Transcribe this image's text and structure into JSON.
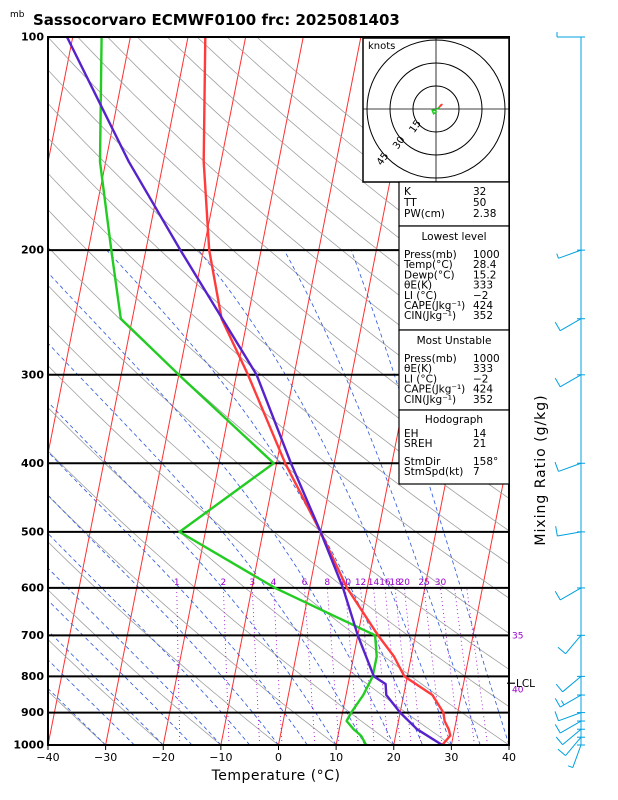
{
  "chart_data": {
    "type": "line",
    "title": "Sassocorvaro ECMWF0100 frc: 2025081403",
    "ylabel_unit": "mb",
    "xlabel": "Temperature (°C)",
    "right_label": "Mixing Ratio (g/kg)",
    "xlim": [
      -40,
      40
    ],
    "ylim": [
      1000,
      100
    ],
    "x_ticks": [
      "−40",
      "−30",
      "−20",
      "−10",
      "0",
      "10",
      "20",
      "30",
      "40"
    ],
    "p_levels": [
      {
        "value": 100,
        "label": "100"
      },
      {
        "value": 200,
        "label": "200"
      },
      {
        "value": 300,
        "label": "300"
      },
      {
        "value": 400,
        "label": "400"
      },
      {
        "value": 500,
        "label": "500"
      },
      {
        "value": 600,
        "label": "600"
      },
      {
        "value": 700,
        "label": "700"
      },
      {
        "value": 800,
        "label": "800"
      },
      {
        "value": 900,
        "label": "900"
      },
      {
        "value": 1000,
        "label": "1000"
      }
    ],
    "mixing_ratio_labels": [
      {
        "w": 1,
        "label": "1"
      },
      {
        "w": 2,
        "label": "2"
      },
      {
        "w": 3,
        "label": "3"
      },
      {
        "w": 4,
        "label": "4"
      },
      {
        "w": 6,
        "label": "6"
      },
      {
        "w": 8,
        "label": "8"
      },
      {
        "w": 10,
        "label": "10"
      },
      {
        "w": 12,
        "label": "12"
      },
      {
        "w": 14,
        "label": "14"
      },
      {
        "w": 16,
        "label": "16"
      },
      {
        "w": 18,
        "label": "18"
      },
      {
        "w": 20,
        "label": "20"
      },
      {
        "w": 25,
        "label": "25"
      },
      {
        "w": 30,
        "label": "30"
      },
      {
        "w": 35,
        "label": "35"
      },
      {
        "w": 40,
        "label": "40"
      }
    ],
    "series": [
      {
        "name": "Temperature",
        "color": "#ff3b3b",
        "points": [
          [
            1000,
            28.4
          ],
          [
            970,
            29.5
          ],
          [
            950,
            29.0
          ],
          [
            925,
            28.0
          ],
          [
            900,
            27.5
          ],
          [
            850,
            25.0
          ],
          [
            800,
            19.5
          ],
          [
            750,
            17.0
          ],
          [
            700,
            13.5
          ],
          [
            600,
            6.5
          ],
          [
            500,
            0.0
          ],
          [
            400,
            -8.5
          ],
          [
            300,
            -18.0
          ],
          [
            250,
            -24.5
          ],
          [
            200,
            -29.0
          ],
          [
            150,
            -33.0
          ],
          [
            100,
            -37.0
          ]
        ]
      },
      {
        "name": "Dew point",
        "color": "#22cc22",
        "points": [
          [
            1000,
            15.2
          ],
          [
            970,
            14.0
          ],
          [
            950,
            12.5
          ],
          [
            925,
            11.0
          ],
          [
            900,
            11.5
          ],
          [
            850,
            13.0
          ],
          [
            800,
            14.0
          ],
          [
            750,
            14.0
          ],
          [
            700,
            13.0
          ],
          [
            600,
            -6.0
          ],
          [
            500,
            -24.5
          ],
          [
            400,
            -10.5
          ],
          [
            300,
            -30.0
          ],
          [
            250,
            -42.0
          ],
          [
            200,
            -46.0
          ],
          [
            150,
            -51.0
          ],
          [
            100,
            -55.0
          ]
        ]
      },
      {
        "name": "Parcel",
        "color": "#5522cc",
        "points": [
          [
            1000,
            28.4
          ],
          [
            950,
            23.5
          ],
          [
            900,
            20.0
          ],
          [
            850,
            17.0
          ],
          [
            820,
            16.5
          ],
          [
            800,
            14.2
          ],
          [
            700,
            10.0
          ],
          [
            600,
            5.8
          ],
          [
            500,
            0.0
          ],
          [
            400,
            -7.5
          ],
          [
            300,
            -16.5
          ],
          [
            200,
            -34.0
          ],
          [
            150,
            -46.0
          ],
          [
            100,
            -61.0
          ]
        ]
      }
    ],
    "lcl_label": "LCL",
    "lcl_pressure": 818,
    "hodograph": {
      "unit": "knots",
      "rings": [
        {
          "v": 15,
          "label": "15"
        },
        {
          "v": 30,
          "label": "30"
        },
        {
          "v": 45,
          "label": "45"
        }
      ],
      "trace": [
        [
          1.5,
          0.5
        ],
        [
          3.0,
          2.5
        ],
        [
          4.0,
          3.0
        ],
        [
          2.0,
          1.0
        ],
        [
          -1.0,
          -1.0
        ],
        [
          -2.5,
          -0.5
        ],
        [
          -1.5,
          -3.0
        ],
        [
          0.5,
          -1.5
        ]
      ]
    },
    "indices": {
      "top": [
        {
          "k": "K",
          "v": "32"
        },
        {
          "k": "TT",
          "v": "50"
        },
        {
          "k": "PW(cm)",
          "v": "2.38"
        }
      ],
      "lowest_level": {
        "heading": "Lowest level",
        "rows": [
          {
            "k": "Press(mb)",
            "v": "1000"
          },
          {
            "k": "Temp(°C)",
            "v": "28.4"
          },
          {
            "k": "Dewp(°C)",
            "v": "15.2"
          },
          {
            "k": "θE(K)",
            "v": "333"
          },
          {
            "k": "LI (°C)",
            "v": "−2"
          },
          {
            "k": "CAPE(Jkg⁻¹)",
            "v": "424"
          },
          {
            "k": "CIN(Jkg⁻¹)",
            "v": "352"
          }
        ]
      },
      "most_unstable": {
        "heading": "Most Unstable",
        "rows": [
          {
            "k": "Press(mb)",
            "v": "1000"
          },
          {
            "k": "θE(K)",
            "v": "333"
          },
          {
            "k": "LI (°C)",
            "v": "−2"
          },
          {
            "k": "CAPE(Jkg⁻¹)",
            "v": "424"
          },
          {
            "k": "CIN(Jkg⁻¹)",
            "v": "352"
          }
        ]
      },
      "hodograph": {
        "heading": "Hodograph",
        "rows": [
          {
            "k": "EH",
            "v": "14"
          },
          {
            "k": "SREH",
            "v": "21"
          },
          {
            "k": "StmDir",
            "v": "158°"
          },
          {
            "k": "StmSpd(kt)",
            "v": "7"
          }
        ]
      }
    },
    "wind_barbs": [
      {
        "p": 1000,
        "dir": 200,
        "spd": 5
      },
      {
        "p": 975,
        "dir": 220,
        "spd": 10
      },
      {
        "p": 950,
        "dir": 230,
        "spd": 10
      },
      {
        "p": 925,
        "dir": 240,
        "spd": 10
      },
      {
        "p": 900,
        "dir": 250,
        "spd": 10
      },
      {
        "p": 850,
        "dir": 240,
        "spd": 15
      },
      {
        "p": 800,
        "dir": 230,
        "spd": 10
      },
      {
        "p": 700,
        "dir": 220,
        "spd": 10
      },
      {
        "p": 600,
        "dir": 240,
        "spd": 10
      },
      {
        "p": 500,
        "dir": 260,
        "spd": 10
      },
      {
        "p": 400,
        "dir": 250,
        "spd": 10
      },
      {
        "p": 300,
        "dir": 240,
        "spd": 10
      },
      {
        "p": 250,
        "dir": 240,
        "spd": 10
      },
      {
        "p": 200,
        "dir": 250,
        "spd": 5
      },
      {
        "p": 100,
        "dir": 270,
        "spd": 5
      }
    ]
  }
}
